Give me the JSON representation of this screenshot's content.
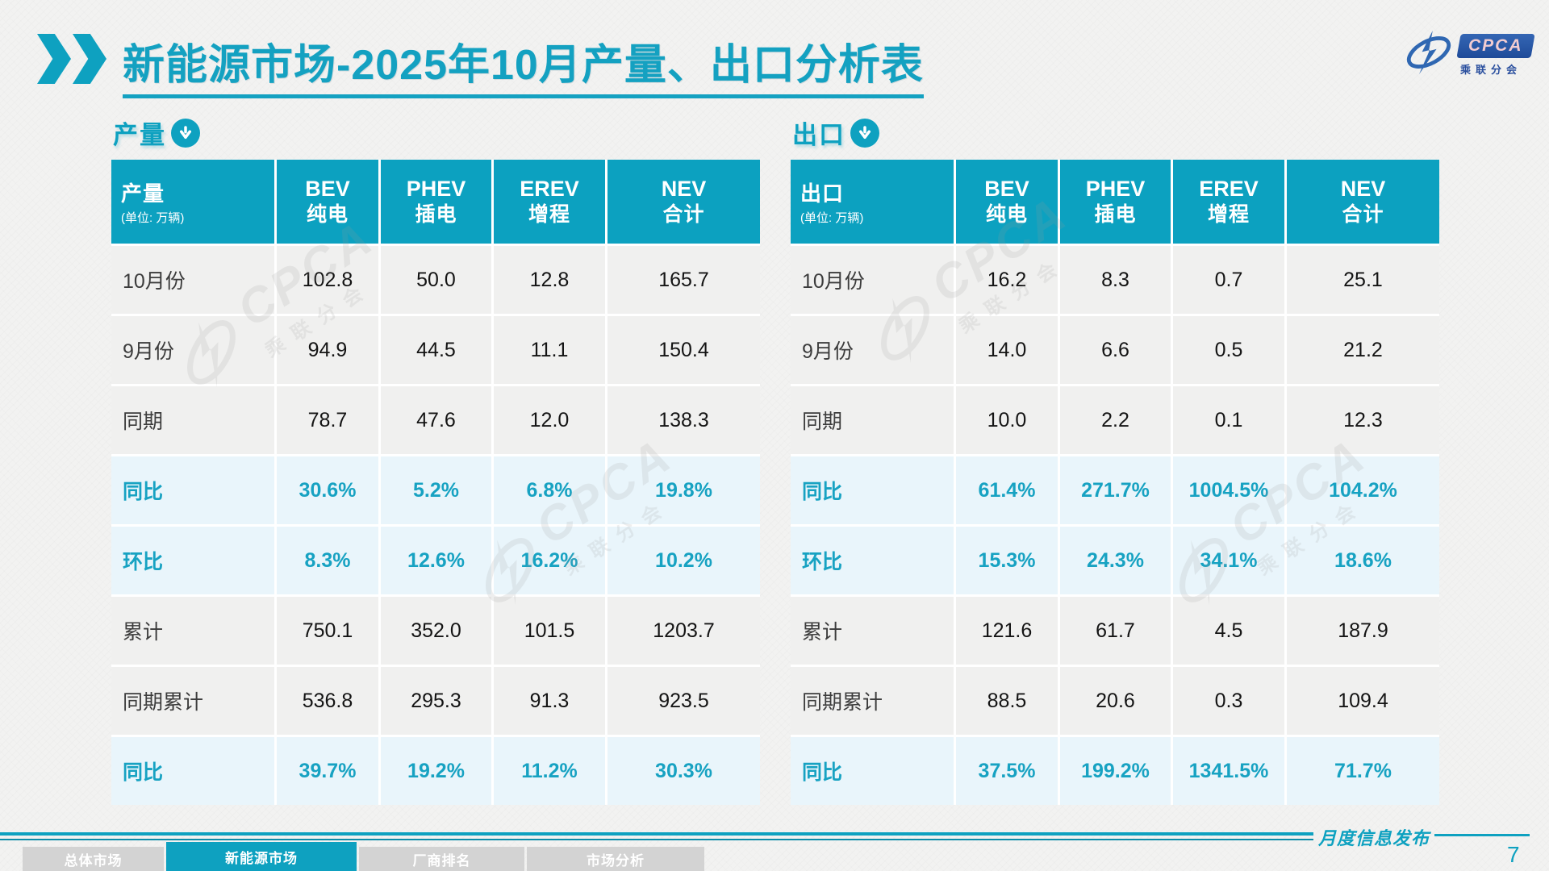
{
  "title": "新能源市场-2025年10月产量、出口分析表",
  "logo": {
    "name": "CPCA",
    "subtitle": "乘联分会"
  },
  "watermark": {
    "text": "CPCA",
    "subtext": "乘联分会"
  },
  "tables": [
    {
      "section_label": "产量",
      "corner_label": "产量",
      "unit_note": "(单位: 万辆)",
      "columns": [
        {
          "en": "BEV",
          "cn": "纯电"
        },
        {
          "en": "PHEV",
          "cn": "插电"
        },
        {
          "en": "EREV",
          "cn": "增程"
        },
        {
          "en": "NEV",
          "cn": "合计"
        }
      ],
      "rows": [
        {
          "label": "10月份",
          "type": "data",
          "values": [
            "102.8",
            "50.0",
            "12.8",
            "165.7"
          ]
        },
        {
          "label": "9月份",
          "type": "data",
          "values": [
            "94.9",
            "44.5",
            "11.1",
            "150.4"
          ]
        },
        {
          "label": "同期",
          "type": "data",
          "values": [
            "78.7",
            "47.6",
            "12.0",
            "138.3"
          ]
        },
        {
          "label": "同比",
          "type": "percent",
          "values": [
            "30.6%",
            "5.2%",
            "6.8%",
            "19.8%"
          ]
        },
        {
          "label": "环比",
          "type": "percent",
          "values": [
            "8.3%",
            "12.6%",
            "16.2%",
            "10.2%"
          ]
        },
        {
          "label": "累计",
          "type": "data",
          "values": [
            "750.1",
            "352.0",
            "101.5",
            "1203.7"
          ]
        },
        {
          "label": "同期累计",
          "type": "data",
          "values": [
            "536.8",
            "295.3",
            "91.3",
            "923.5"
          ]
        },
        {
          "label": "同比",
          "type": "percent",
          "values": [
            "39.7%",
            "19.2%",
            "11.2%",
            "30.3%"
          ]
        }
      ]
    },
    {
      "section_label": "出口",
      "corner_label": "出口",
      "unit_note": "(单位: 万辆)",
      "columns": [
        {
          "en": "BEV",
          "cn": "纯电"
        },
        {
          "en": "PHEV",
          "cn": "插电"
        },
        {
          "en": "EREV",
          "cn": "增程"
        },
        {
          "en": "NEV",
          "cn": "合计"
        }
      ],
      "rows": [
        {
          "label": "10月份",
          "type": "data",
          "values": [
            "16.2",
            "8.3",
            "0.7",
            "25.1"
          ]
        },
        {
          "label": "9月份",
          "type": "data",
          "values": [
            "14.0",
            "6.6",
            "0.5",
            "21.2"
          ]
        },
        {
          "label": "同期",
          "type": "data",
          "values": [
            "10.0",
            "2.2",
            "0.1",
            "12.3"
          ]
        },
        {
          "label": "同比",
          "type": "percent",
          "values": [
            "61.4%",
            "271.7%",
            "1004.5%",
            "104.2%"
          ]
        },
        {
          "label": "环比",
          "type": "percent",
          "values": [
            "15.3%",
            "24.3%",
            "34.1%",
            "18.6%"
          ]
        },
        {
          "label": "累计",
          "type": "data",
          "values": [
            "121.6",
            "61.7",
            "4.5",
            "187.9"
          ]
        },
        {
          "label": "同期累计",
          "type": "data",
          "values": [
            "88.5",
            "20.6",
            "0.3",
            "109.4"
          ]
        },
        {
          "label": "同比",
          "type": "percent",
          "values": [
            "37.5%",
            "199.2%",
            "1341.5%",
            "71.7%"
          ]
        }
      ]
    }
  ],
  "footer": {
    "tabs": [
      {
        "label": "总体市场",
        "active": false
      },
      {
        "label": "新能源市场",
        "active": true
      },
      {
        "label": "厂商排名",
        "active": false
      },
      {
        "label": "市场分析",
        "active": false
      }
    ],
    "publication_label": "月度信息发布",
    "page_number": "7"
  },
  "colors": {
    "accent": "#0ea1c0",
    "header_bg": "#0ca1c0",
    "percent_row_bg": "#e9f5fb",
    "data_row_bg": "#f0f0ef",
    "logo_blue": "#2a4f9e"
  }
}
